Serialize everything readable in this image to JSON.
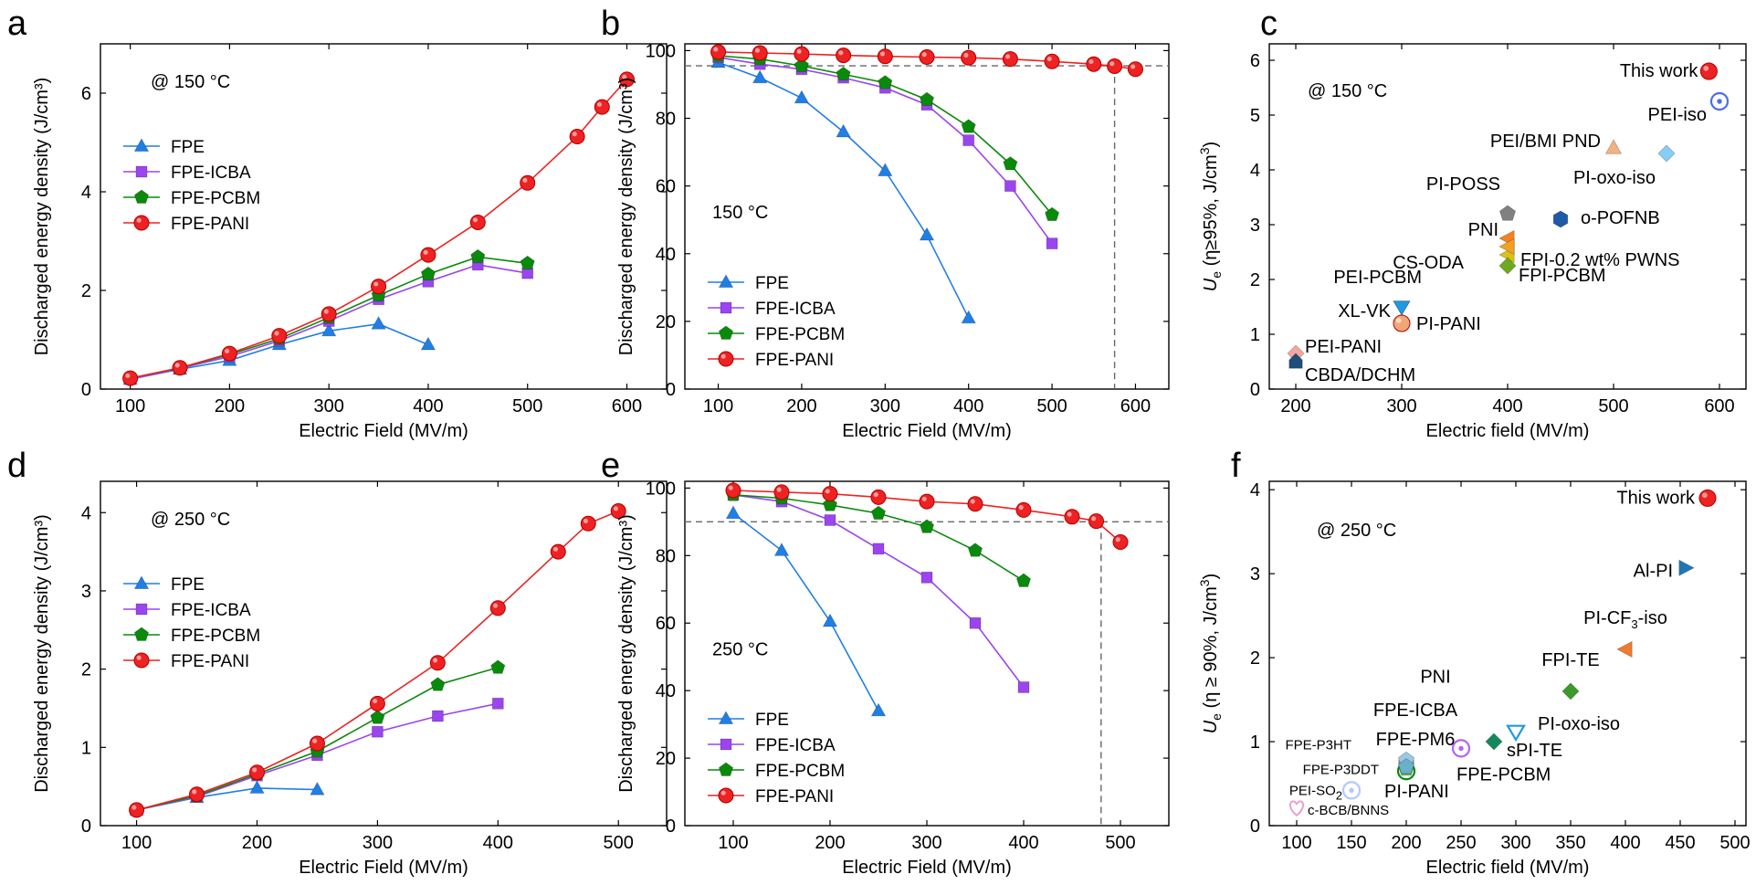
{
  "panel_letters": [
    "a",
    "b",
    "c",
    "d",
    "e",
    "f"
  ],
  "colors": {
    "FPE": "#1f7fe6",
    "FPE-ICBA": "#9b44f0",
    "FPE-PCBM": "#0a8a0a",
    "FPE-PANI": "#ee2222",
    "red_text": "#ee1111"
  },
  "chart_data": [
    {
      "panel": "a",
      "type": "line",
      "annotation": "@ 150 °C",
      "xlabel": "Electric Field (MV/m)",
      "ylabel": "Discharged energy density (J/cm³)",
      "xlim": [
        70,
        640
      ],
      "ylim": [
        0,
        7
      ],
      "xticks": [
        100,
        200,
        300,
        400,
        500,
        600
      ],
      "yticks": [
        0,
        2,
        4,
        6
      ],
      "legend_position": "left",
      "series": [
        {
          "name": "FPE",
          "marker": "triangle",
          "x": [
            100,
            150,
            200,
            250,
            300,
            350,
            400
          ],
          "y": [
            0.2,
            0.4,
            0.58,
            0.9,
            1.18,
            1.32,
            0.9
          ]
        },
        {
          "name": "FPE-ICBA",
          "marker": "square",
          "x": [
            100,
            150,
            200,
            250,
            300,
            350,
            400,
            450,
            500
          ],
          "y": [
            0.2,
            0.42,
            0.66,
            0.98,
            1.38,
            1.82,
            2.18,
            2.52,
            2.35
          ]
        },
        {
          "name": "FPE-PCBM",
          "marker": "pentagon",
          "x": [
            100,
            150,
            200,
            250,
            300,
            350,
            400,
            450,
            500
          ],
          "y": [
            0.22,
            0.43,
            0.7,
            1.02,
            1.45,
            1.9,
            2.33,
            2.68,
            2.55
          ]
        },
        {
          "name": "FPE-PANI",
          "marker": "circle",
          "x": [
            100,
            150,
            200,
            250,
            300,
            350,
            400,
            450,
            500,
            550,
            575,
            600
          ],
          "y": [
            0.22,
            0.43,
            0.72,
            1.08,
            1.52,
            2.08,
            2.72,
            3.38,
            4.18,
            5.12,
            5.72,
            6.28
          ]
        }
      ]
    },
    {
      "panel": "b",
      "type": "line",
      "annotation": "150 °C",
      "xlabel": "Electric Field (MV/m)",
      "ylabel": "Discharged energy density (J/cm³)",
      "xlim": [
        60,
        640
      ],
      "ylim": [
        0,
        102
      ],
      "xticks": [
        100,
        200,
        300,
        400,
        500,
        600
      ],
      "yticks": [
        0,
        20,
        40,
        60,
        80,
        100
      ],
      "legend_position": "bottom-left",
      "threshold": {
        "y": 95.5,
        "x": 575
      },
      "series": [
        {
          "name": "FPE",
          "marker": "triangle",
          "x": [
            100,
            150,
            200,
            250,
            300,
            350,
            400
          ],
          "y": [
            96.5,
            92,
            86,
            76,
            64.5,
            45.5,
            21
          ]
        },
        {
          "name": "FPE-ICBA",
          "marker": "square",
          "x": [
            100,
            150,
            200,
            250,
            300,
            350,
            400,
            450,
            500
          ],
          "y": [
            98,
            96,
            94.5,
            92,
            89,
            84,
            73.5,
            60,
            43
          ]
        },
        {
          "name": "FPE-PCBM",
          "marker": "pentagon",
          "x": [
            100,
            150,
            200,
            250,
            300,
            350,
            400,
            450,
            500
          ],
          "y": [
            98.5,
            97.5,
            95.5,
            93,
            90.5,
            85.5,
            77.5,
            66.5,
            51.5
          ]
        },
        {
          "name": "FPE-PANI",
          "marker": "circle",
          "x": [
            100,
            150,
            200,
            250,
            300,
            350,
            400,
            450,
            500,
            550,
            575,
            600
          ],
          "y": [
            99.6,
            99.3,
            99,
            98.6,
            98.3,
            98.1,
            97.9,
            97.5,
            96.8,
            96,
            95.4,
            94.5
          ]
        }
      ]
    },
    {
      "panel": "c",
      "type": "scatter",
      "annotation": "@ 150 °C",
      "xlabel": "Electric field (MV/m)",
      "ylabel": "Ue (η≥95%, J/cm³)",
      "ylabel_parts": [
        "U",
        "e",
        " (η≥95%, J/cm",
        "3",
        ")"
      ],
      "xlim": [
        175,
        625
      ],
      "ylim": [
        0,
        6.3
      ],
      "xticks": [
        200,
        300,
        400,
        500,
        600
      ],
      "yticks": [
        0,
        1,
        2,
        3,
        4,
        5,
        6
      ],
      "points": [
        {
          "label": "This work",
          "x": 590,
          "y": 5.8,
          "marker": "circle",
          "color": "#ee2222",
          "label_color": "#ee1111"
        },
        {
          "label": "PEI-iso",
          "x": 600,
          "y": 5.25,
          "marker": "ring",
          "color": "#4a6cf0"
        },
        {
          "label": "PEI/BMI PND",
          "x": 500,
          "y": 4.4,
          "marker": "triangle",
          "color": "#f4b183"
        },
        {
          "label": "PI-oxo-iso",
          "x": 550,
          "y": 4.3,
          "marker": "diamond",
          "color": "#87cef5"
        },
        {
          "label": "PI-POSS",
          "x": 400,
          "y": 3.2,
          "marker": "pentagon",
          "color": "#808080"
        },
        {
          "label": "o-POFNB",
          "x": 450,
          "y": 3.1,
          "marker": "hexagon",
          "color": "#1f5aa8"
        },
        {
          "label": "PNI",
          "x": 400,
          "y": 2.75,
          "marker": "tri-left",
          "color": "#f58220"
        },
        {
          "label": "FPI-0.2 wt% PWNS",
          "x": 400,
          "y": 2.45,
          "marker": "tri-left",
          "color": "#d8c21a"
        },
        {
          "label": "CS-ODA",
          "x": 400,
          "y": 2.6,
          "marker": "tri-left",
          "color": "#f3a024"
        },
        {
          "label": "FPI-PCBM",
          "x": 400,
          "y": 2.25,
          "marker": "diamond",
          "color": "#6eaa20"
        },
        {
          "label": "PEI-PCBM",
          "x": 300,
          "y": 1.5,
          "marker": "tri-down",
          "color": "#1e9ae0"
        },
        {
          "label": "XL-VK",
          "x": 300,
          "y": 1.5,
          "marker": "tri-down",
          "color": "#1e9ae0"
        },
        {
          "label": "PI-PANI",
          "x": 300,
          "y": 1.2,
          "marker": "circle",
          "color": "#f0a777"
        },
        {
          "label": "PEI-PANI",
          "x": 200,
          "y": 0.65,
          "marker": "diamond",
          "color": "#f4a6a0"
        },
        {
          "label": "CBDA/DCHM",
          "x": 200,
          "y": 0.5,
          "marker": "house",
          "color": "#1f4e79"
        }
      ]
    },
    {
      "panel": "d",
      "type": "line",
      "annotation": "@ 250 °C",
      "xlabel": "Electric Field (MV/m)",
      "ylabel": "Discharged energy density (J/cm³)",
      "xlim": [
        70,
        540
      ],
      "ylim": [
        0,
        4.4
      ],
      "xticks": [
        100,
        200,
        300,
        400,
        500
      ],
      "yticks": [
        0,
        1,
        2,
        3,
        4
      ],
      "legend_position": "left",
      "series": [
        {
          "name": "FPE",
          "marker": "triangle",
          "x": [
            100,
            150,
            200,
            250
          ],
          "y": [
            0.2,
            0.36,
            0.48,
            0.46
          ]
        },
        {
          "name": "FPE-ICBA",
          "marker": "square",
          "x": [
            100,
            150,
            200,
            250,
            300,
            350,
            400
          ],
          "y": [
            0.2,
            0.37,
            0.64,
            0.9,
            1.2,
            1.4,
            1.56
          ]
        },
        {
          "name": "FPE-PCBM",
          "marker": "pentagon",
          "x": [
            100,
            150,
            200,
            250,
            300,
            350,
            400
          ],
          "y": [
            0.2,
            0.38,
            0.66,
            0.95,
            1.38,
            1.8,
            2.02
          ]
        },
        {
          "name": "FPE-PANI",
          "marker": "circle",
          "x": [
            100,
            150,
            200,
            250,
            300,
            350,
            400,
            450,
            475,
            500
          ],
          "y": [
            0.2,
            0.4,
            0.68,
            1.05,
            1.56,
            2.08,
            2.78,
            3.5,
            3.86,
            4.02
          ]
        }
      ]
    },
    {
      "panel": "e",
      "type": "line",
      "annotation": "250 °C",
      "xlabel": "Electric Field (MV/m)",
      "ylabel": "Discharged energy density (J/cm³)",
      "xlim": [
        50,
        550
      ],
      "ylim": [
        0,
        102
      ],
      "xticks": [
        100,
        200,
        300,
        400,
        500
      ],
      "yticks": [
        0,
        20,
        40,
        60,
        80,
        100
      ],
      "legend_position": "bottom-left",
      "threshold": {
        "y": 90,
        "x": 480
      },
      "series": [
        {
          "name": "FPE",
          "marker": "triangle",
          "x": [
            100,
            150,
            200,
            250
          ],
          "y": [
            92.5,
            81.5,
            60.5,
            34
          ]
        },
        {
          "name": "FPE-ICBA",
          "marker": "square",
          "x": [
            100,
            150,
            200,
            250,
            300,
            350,
            400
          ],
          "y": [
            98,
            96,
            90.5,
            82,
            73.5,
            60,
            41
          ]
        },
        {
          "name": "FPE-PCBM",
          "marker": "pentagon",
          "x": [
            100,
            150,
            200,
            250,
            300,
            350,
            400
          ],
          "y": [
            98,
            97,
            95,
            92.5,
            88.5,
            81.5,
            72.5
          ]
        },
        {
          "name": "FPE-PANI",
          "marker": "circle",
          "x": [
            100,
            150,
            200,
            250,
            300,
            350,
            400,
            450,
            475,
            500
          ],
          "y": [
            99.3,
            98.8,
            98.3,
            97.3,
            96,
            95.3,
            93.5,
            91.5,
            90.2,
            84
          ]
        }
      ]
    },
    {
      "panel": "f",
      "type": "scatter",
      "annotation": "@ 250 °C",
      "xlabel": "Electric field (MV/m)",
      "ylabel": "Ue (η ≥ 90%, J/cm³)",
      "ylabel_parts": [
        "U",
        "e",
        " (η ≥ 90%, J/cm",
        "3",
        ")"
      ],
      "xlim": [
        75,
        510
      ],
      "ylim": [
        0,
        4.1
      ],
      "xticks": [
        100,
        150,
        200,
        250,
        300,
        350,
        400,
        450,
        500
      ],
      "yticks": [
        0,
        1,
        2,
        3,
        4
      ],
      "points": [
        {
          "label": "This work",
          "x": 475,
          "y": 3.9,
          "marker": "circle",
          "color": "#ee2222",
          "label_color": "#ee1111"
        },
        {
          "label": "Al-PI",
          "x": 455,
          "y": 3.07,
          "marker": "tri-right",
          "color": "#1f78b4"
        },
        {
          "label": "PI-CF3-iso",
          "label_parts": [
            "PI-CF",
            "3",
            "-iso"
          ],
          "x": 400,
          "y": 2.1,
          "marker": "tri-left",
          "color": "#f07a30"
        },
        {
          "label": "FPI-TE",
          "x": 350,
          "y": 1.6,
          "marker": "diamond",
          "color": "#3a9a2a"
        },
        {
          "label": "PI-oxo-iso",
          "x": 300,
          "y": 1.12,
          "marker": "tri-down-open",
          "color": "#1e9ae0"
        },
        {
          "label": "sPI-TE",
          "x": 280,
          "y": 1.0,
          "marker": "diamond",
          "color": "#138a5e"
        },
        {
          "label": "PNI",
          "x": 250,
          "y": 0.92,
          "marker": "ring",
          "color": "#b266f0"
        },
        {
          "label": "FPE-ICBA",
          "x": 200,
          "y": 0.75,
          "marker": "pentagon",
          "color": "#f5c071"
        },
        {
          "label": "FPE-PM6",
          "x": 200,
          "y": 0.72,
          "marker": "pentagon",
          "color": "#7fa0c0"
        },
        {
          "label": "FPE-PCBM",
          "x": 200,
          "y": 0.68,
          "marker": "pentagon",
          "color": "#5aa84a"
        },
        {
          "label": "PI-PANI",
          "x": 200,
          "y": 0.65,
          "marker": "ring",
          "color": "#0a8a0a"
        },
        {
          "label": "FPE-P3HT",
          "x": 200,
          "y": 0.78,
          "marker": "pentagon",
          "color": "#9ac8e8"
        },
        {
          "label": "FPE-P3DDT",
          "x": 200,
          "y": 0.7,
          "marker": "pentagon",
          "color": "#6ab0c8"
        },
        {
          "label": "PEI-SO2",
          "label_parts": [
            "PEI-SO",
            "2"
          ],
          "x": 150,
          "y": 0.42,
          "marker": "ring",
          "color": "#b0c8ff"
        },
        {
          "label": "c-BCB/BNNS",
          "x": 100,
          "y": 0.22,
          "marker": "heart",
          "color": "#e8a0d0"
        }
      ]
    }
  ]
}
